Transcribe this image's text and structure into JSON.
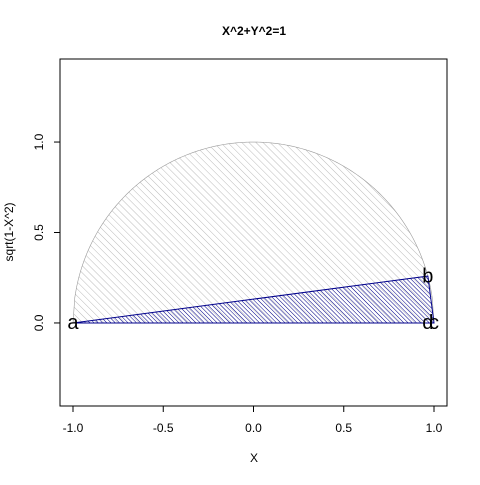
{
  "chart_data": {
    "type": "polygon",
    "title": "X^2+Y^2=1",
    "x_label": "X",
    "y_label": "sqrt(1-X^2)",
    "xlim": [
      -1.072,
      1.072
    ],
    "ylim": [
      -0.459,
      1.459
    ],
    "xticks": [
      {
        "value": -1,
        "label": "-1.0"
      },
      {
        "value": -0.5,
        "label": "-0.5"
      },
      {
        "value": 0,
        "label": "0.0"
      },
      {
        "value": 0.5,
        "label": "0.5"
      },
      {
        "value": 1,
        "label": "1.0"
      }
    ],
    "yticks": [
      {
        "value": 0,
        "label": "0.0"
      },
      {
        "value": 0.5,
        "label": "0.5"
      },
      {
        "value": 1,
        "label": "1.0"
      }
    ],
    "curve": {
      "x_from": -1,
      "x_to": 1,
      "color": "#9a9a9a"
    },
    "points": {
      "labels": [
        "a",
        "b",
        "c",
        "d"
      ],
      "x": [
        -1,
        0.966,
        1,
        0.966
      ],
      "y": [
        0,
        0.259,
        0,
        0
      ],
      "color": "#00008b"
    }
  }
}
